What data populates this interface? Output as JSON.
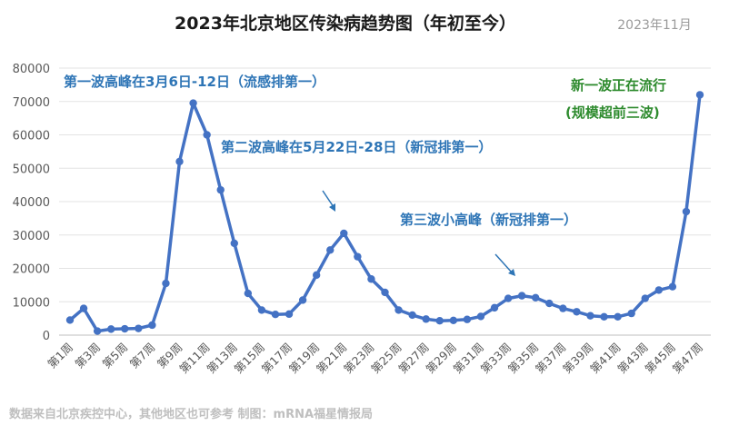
{
  "chart_data": {
    "type": "line",
    "title": "2023年北京地区传染病趋势图（年初至今）",
    "date_label": "2023年11月",
    "xlabel": "",
    "ylabel": "",
    "ylim": [
      0,
      80000
    ],
    "yticks": [
      "0",
      "10000",
      "20000",
      "30000",
      "40000",
      "50000",
      "60000",
      "70000",
      "80000"
    ],
    "categories": [
      "第1周",
      "第2周",
      "第3周",
      "第4周",
      "第5周",
      "第6周",
      "第7周",
      "第8周",
      "第9周",
      "第10周",
      "第11周",
      "第12周",
      "第13周",
      "第14周",
      "第15周",
      "第16周",
      "第17周",
      "第18周",
      "第19周",
      "第20周",
      "第21周",
      "第22周",
      "第23周",
      "第24周",
      "第25周",
      "第26周",
      "第27周",
      "第28周",
      "第29周",
      "第30周",
      "第31周",
      "第32周",
      "第33周",
      "第34周",
      "第35周",
      "第36周",
      "第37周",
      "第38周",
      "第39周",
      "第40周",
      "第41周",
      "第42周",
      "第43周",
      "第44周",
      "第45周",
      "第46周",
      "第47周"
    ],
    "xtick_labels": [
      "第1周",
      "",
      "第3周",
      "",
      "第5周",
      "",
      "第7周",
      "",
      "第9周",
      "",
      "第11周",
      "",
      "第13周",
      "",
      "第15周",
      "",
      "第17周",
      "",
      "第19周",
      "",
      "第21周",
      "",
      "第23周",
      "",
      "第25周",
      "",
      "第27周",
      "",
      "第29周",
      "",
      "第31周",
      "",
      "第33周",
      "",
      "第35周",
      "",
      "第37周",
      "",
      "第39周",
      "",
      "第41周",
      "",
      "第43周",
      "",
      "第45周",
      "",
      "第47周"
    ],
    "series": [
      {
        "color": "#4472c4",
        "values": [
          4500,
          8000,
          1200,
          1800,
          1900,
          2000,
          3000,
          15500,
          52000,
          69500,
          60000,
          43500,
          27500,
          12500,
          7500,
          6200,
          6300,
          10500,
          18000,
          25500,
          30500,
          23500,
          16800,
          12800,
          7500,
          6000,
          4800,
          4300,
          4400,
          4700,
          5600,
          8200,
          11000,
          11800,
          11200,
          9500,
          8000,
          7000,
          5800,
          5500,
          5500,
          6500,
          11000,
          13500,
          14500,
          37000,
          72000
        ]
      }
    ],
    "grid": true,
    "legend": "none",
    "annotations": [
      {
        "text": "第一波高峰在3月6日-12日（流感排第一）",
        "color": "#2e75b6"
      },
      {
        "text": "第二波高峰在5月22日-28日（新冠排第一）",
        "color": "#2e75b6"
      },
      {
        "text": "第三波小高峰（新冠排第一）",
        "color": "#2e75b6"
      },
      {
        "text": "新一波正在流行",
        "color": "#2e8b2e"
      },
      {
        "text": "(规模超前三波)",
        "color": "#2e8b2e"
      }
    ],
    "source": "数据来自北京疾控中心，其他地区也可参考  制图：mRNA福星情报局"
  }
}
